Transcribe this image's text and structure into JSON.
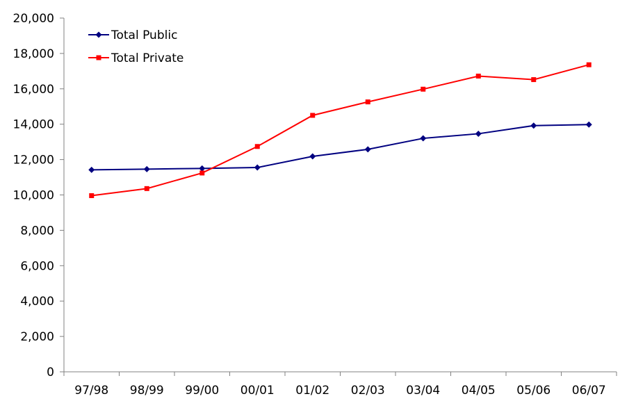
{
  "chart_data": {
    "type": "line",
    "categories": [
      "97/98",
      "98/99",
      "99/00",
      "00/01",
      "01/02",
      "02/03",
      "03/04",
      "04/05",
      "05/06",
      "06/07"
    ],
    "series": [
      {
        "name": "Total Public",
        "color": "#000080",
        "marker": "diamond",
        "values": [
          11420,
          11460,
          11500,
          11550,
          12180,
          12580,
          13200,
          13460,
          13920,
          13980
        ]
      },
      {
        "name": "Total Private",
        "color": "#ff0000",
        "marker": "square",
        "values": [
          9960,
          10360,
          11240,
          12740,
          14500,
          15260,
          15980,
          16720,
          16520,
          17360
        ]
      }
    ],
    "y_ticks": [
      "0",
      "2,000",
      "4,000",
      "6,000",
      "8,000",
      "10,000",
      "12,000",
      "14,000",
      "16,000",
      "18,000",
      "20,000"
    ],
    "ylim": [
      0,
      20000
    ],
    "y_step": 2000,
    "grid": false,
    "legend_position": "top-left"
  }
}
